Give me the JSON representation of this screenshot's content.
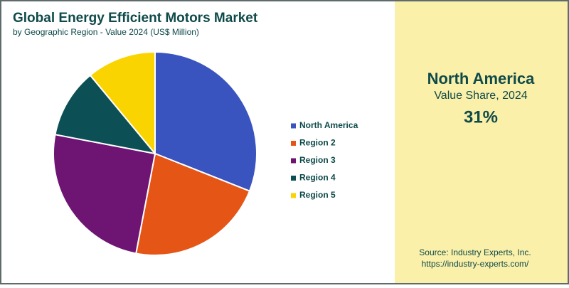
{
  "chart_data": {
    "type": "pie",
    "title": "Global Energy Efficient Motors Market",
    "subtitle": "by Geographic Region - Value 2024 (US$ Million)",
    "categories": [
      "North America",
      "Region 2",
      "Region 3",
      "Region 4",
      "Region 5"
    ],
    "values": [
      31,
      22,
      25,
      11,
      11
    ],
    "colors": [
      "#3953bf",
      "#e55515",
      "#6e1473",
      "#0c4f55",
      "#fad400"
    ],
    "legend": "right"
  },
  "highlight": {
    "region": "North America",
    "label": "Value Share, 2024",
    "value": "31%"
  },
  "source": {
    "line1": "Source: Industry Experts, Inc.",
    "line2": "https://industry-experts.com/"
  }
}
